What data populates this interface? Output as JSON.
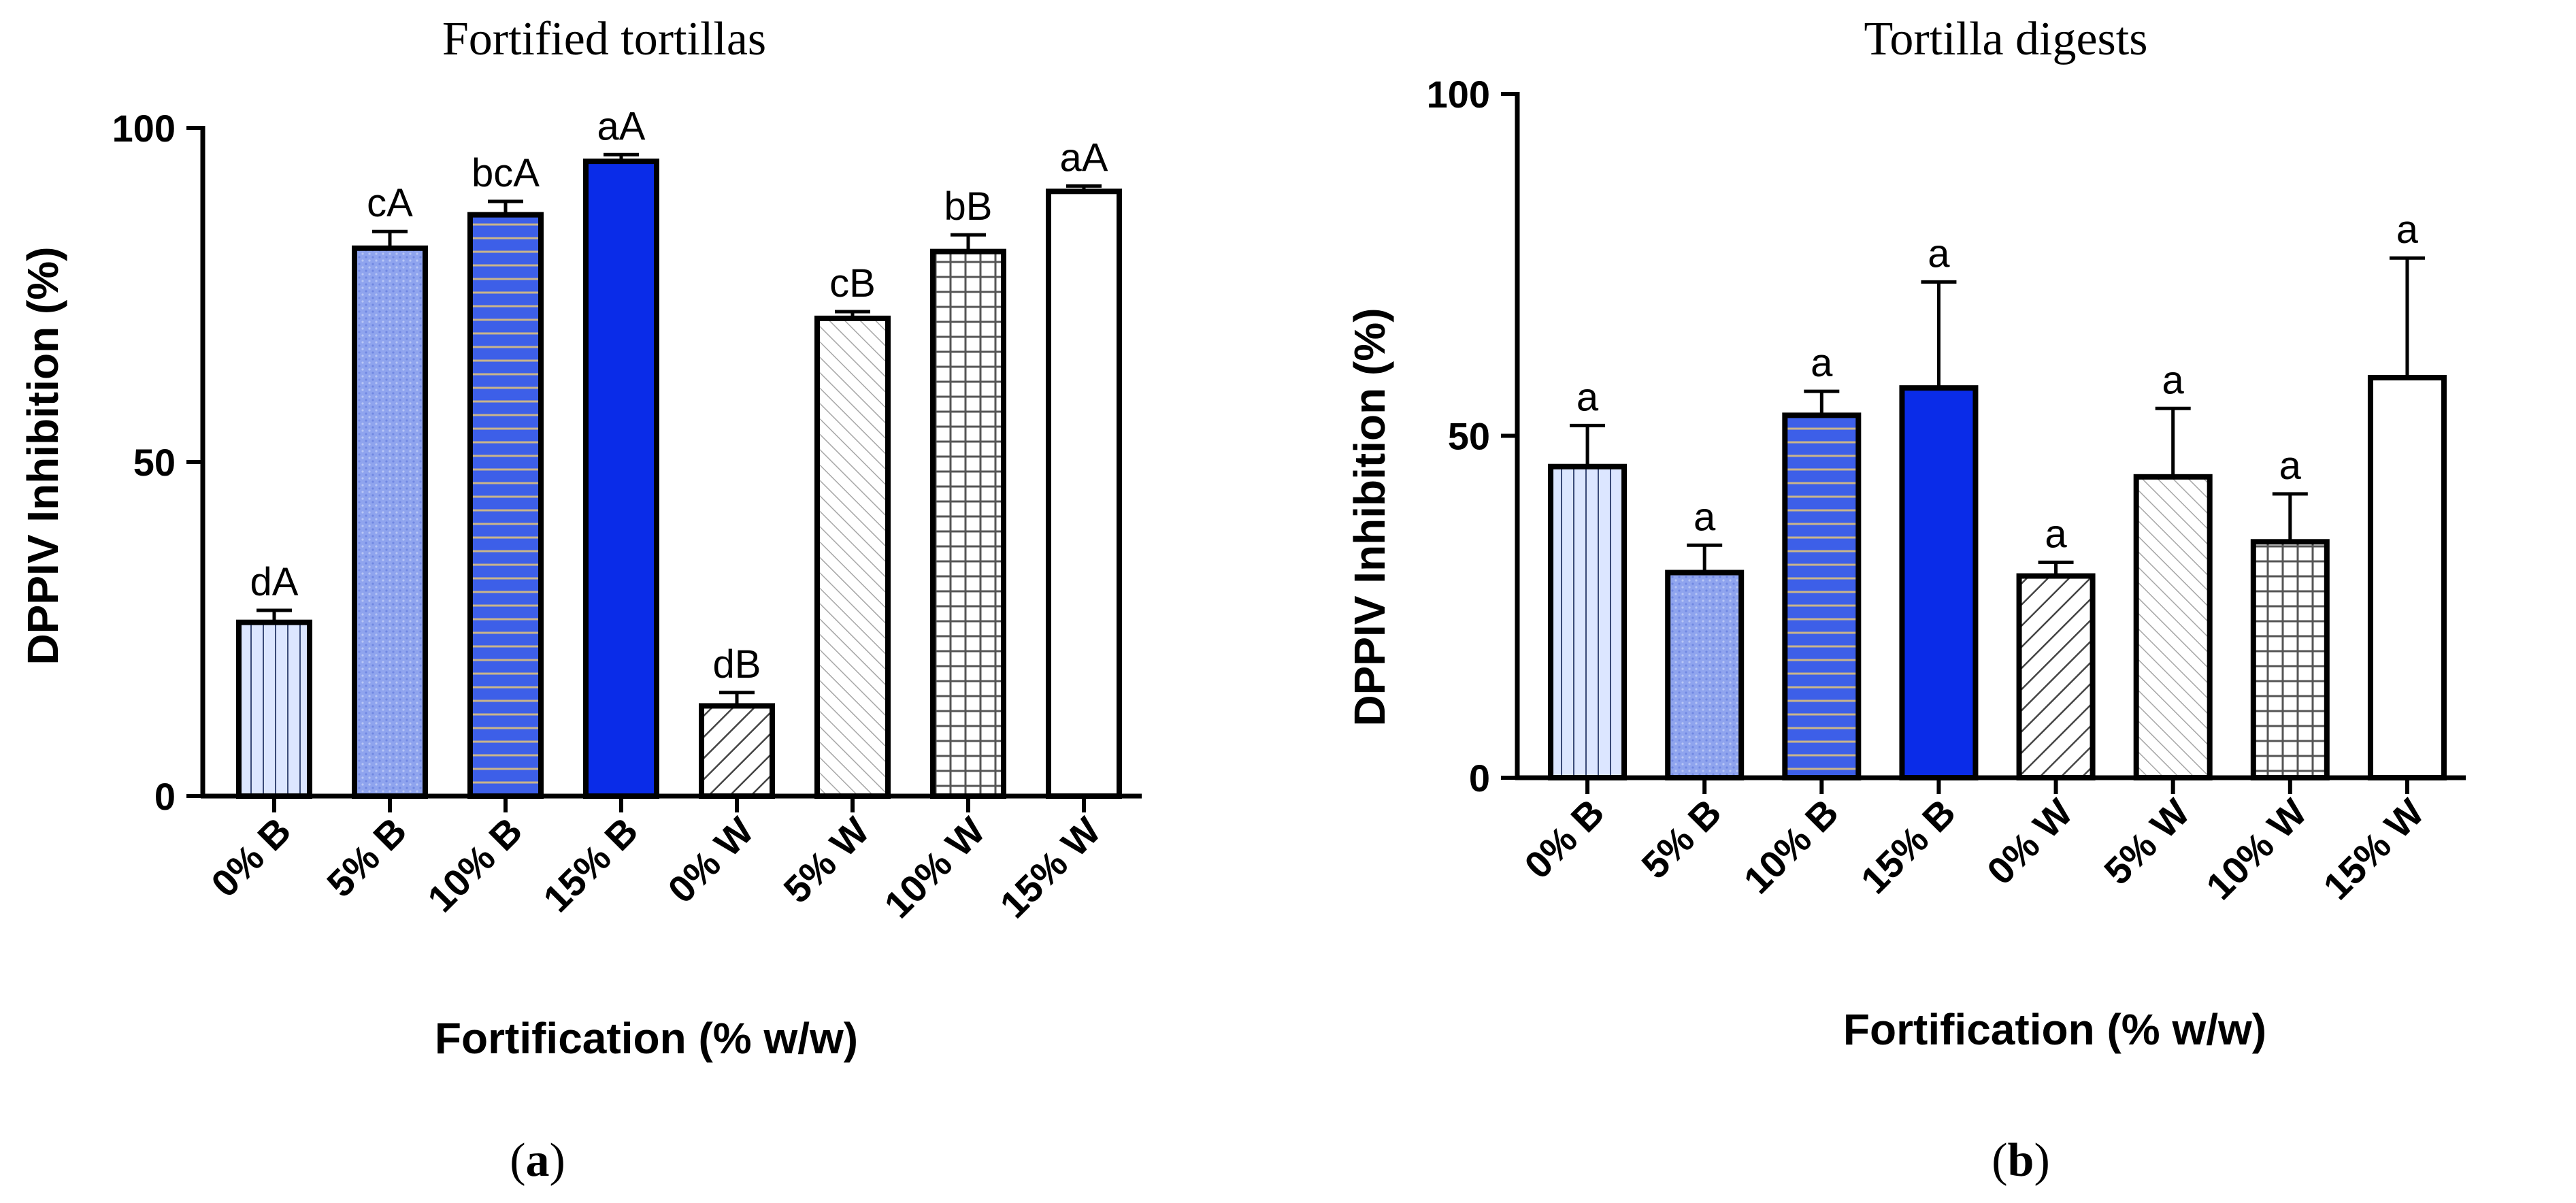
{
  "chart_data": [
    {
      "type": "bar",
      "panel": "a",
      "panel_label": "a",
      "title": "Fortified tortillas",
      "xlabel": "Fortification (% w/w)",
      "ylabel": "DPPIV Inhibition (%)",
      "ylim": [
        0,
        100
      ],
      "yticks": [
        0,
        50,
        100
      ],
      "categories": [
        "0% B",
        "5% B",
        "10% B",
        "15% B",
        "0% W",
        "5% W",
        "10% W",
        "15% W"
      ],
      "values": [
        26,
        82,
        87,
        95,
        13.5,
        71.5,
        81.5,
        90.5
      ],
      "errors": [
        1.8,
        2.5,
        2.0,
        1.0,
        2.0,
        1.0,
        2.5,
        0.8
      ],
      "significance": [
        "dA",
        "cA",
        "bcA",
        "aA",
        "dB",
        "cB",
        "bB",
        "aA"
      ],
      "patterns": [
        "vlines-light-blue",
        "dots-blue",
        "hlines-blue",
        "solid-blue",
        "diag-dark",
        "diag-light",
        "grid",
        "white"
      ]
    },
    {
      "type": "bar",
      "panel": "b",
      "panel_label": "b",
      "title": "Tortilla digests",
      "xlabel": "Fortification (% w/w)",
      "ylabel": "DPPIV Inhibition (%)",
      "ylim": [
        0,
        100
      ],
      "yticks": [
        0,
        50,
        100
      ],
      "categories": [
        "0% B",
        "5% B",
        "10% B",
        "15% B",
        "0% W",
        "5% W",
        "10% W",
        "15% W"
      ],
      "values": [
        45.5,
        30,
        53,
        57,
        29.5,
        44,
        34.5,
        58.5
      ],
      "errors": [
        6,
        4,
        3.5,
        15.5,
        2,
        10,
        7,
        17.5
      ],
      "significance": [
        "a",
        "a",
        "a",
        "a",
        "a",
        "a",
        "a",
        "a"
      ],
      "patterns": [
        "vlines-light-blue",
        "dots-blue",
        "hlines-blue",
        "solid-blue",
        "diag-dark",
        "diag-light",
        "grid",
        "white"
      ]
    }
  ],
  "colors": {
    "light_blue": "#dce6ff",
    "blue_mid": "#8fa4ee",
    "blue_dark": "#0a2ce8",
    "stripe_tan": "#c9b48a",
    "axis": "#000000"
  }
}
